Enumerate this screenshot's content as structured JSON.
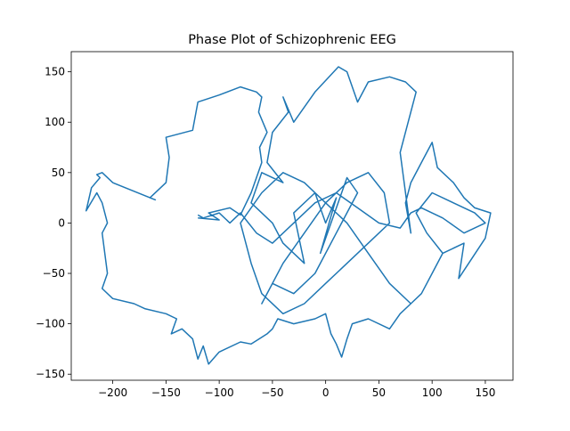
{
  "chart_data": {
    "type": "line",
    "title": "Phase Plot of Schizophrenic EEG",
    "color": "#1f77b4",
    "xlim": [
      -239,
      176
    ],
    "ylim": [
      -156,
      170
    ],
    "xticks": [
      {
        "value": -200,
        "label": "−200"
      },
      {
        "value": -150,
        "label": "−150"
      },
      {
        "value": -100,
        "label": "−100"
      },
      {
        "value": -50,
        "label": "−50"
      },
      0,
      50,
      100,
      150
    ],
    "yticks": [
      {
        "value": -150,
        "label": "−150"
      },
      {
        "value": -100,
        "label": "−100"
      },
      {
        "value": -50,
        "label": "−50"
      },
      0,
      50,
      100,
      150
    ],
    "x": [
      -120,
      -100,
      -110,
      -90,
      -80,
      -70,
      -60,
      -62,
      -55,
      -63,
      -60,
      -65,
      -80,
      -100,
      -120,
      -125,
      -150,
      -147,
      -150,
      -165,
      -160,
      -200,
      -210,
      -215,
      -212,
      -220,
      -225,
      -215,
      -210,
      -205,
      -210,
      -205,
      -210,
      -200,
      -180,
      -170,
      -150,
      -140,
      -145,
      -135,
      -125,
      -120,
      -115,
      -110,
      -100,
      -80,
      -70,
      -55,
      -50,
      -45,
      -30,
      -10,
      0,
      5,
      10,
      15,
      20,
      25,
      40,
      60,
      70,
      80,
      90,
      100,
      110,
      130,
      125,
      150,
      155,
      140,
      130,
      120,
      105,
      100,
      90,
      80,
      75,
      80,
      70,
      85,
      75,
      60,
      40,
      30,
      20,
      12,
      -10,
      -20,
      -30,
      -40,
      -35,
      -50,
      -55,
      -40,
      -60,
      -70,
      -50,
      -40,
      -20,
      -30,
      -10,
      0,
      10,
      -5,
      20,
      30,
      10,
      -10,
      -30,
      -50,
      -60,
      -40,
      -20,
      0,
      20,
      40,
      55,
      60,
      40,
      20,
      0,
      -20,
      -40,
      -60,
      -70,
      -80,
      -60,
      -40,
      -20,
      0,
      20,
      40,
      60,
      80,
      90,
      100,
      110,
      95,
      85,
      100,
      120,
      140,
      150,
      130,
      110,
      90,
      80,
      70,
      50,
      30,
      10,
      -10,
      -30,
      -50,
      -65,
      -80,
      -90,
      -100,
      -115,
      -120
    ],
    "y": [
      5,
      3,
      10,
      15,
      8,
      30,
      60,
      75,
      90,
      110,
      125,
      130,
      135,
      127,
      120,
      92,
      85,
      65,
      40,
      25,
      23,
      40,
      50,
      48,
      45,
      35,
      12,
      30,
      20,
      0,
      -10,
      -50,
      -65,
      -75,
      -80,
      -85,
      -90,
      -95,
      -110,
      -105,
      -115,
      -135,
      -122,
      -140,
      -128,
      -118,
      -120,
      -110,
      -105,
      -95,
      -100,
      -95,
      -90,
      -110,
      -120,
      -133,
      -115,
      -100,
      -95,
      -105,
      -90,
      -80,
      -70,
      -50,
      -30,
      -20,
      -55,
      -15,
      10,
      15,
      25,
      40,
      55,
      80,
      60,
      40,
      20,
      -10,
      70,
      130,
      140,
      145,
      140,
      120,
      150,
      155,
      130,
      115,
      100,
      125,
      110,
      90,
      60,
      40,
      50,
      20,
      0,
      -20,
      -40,
      10,
      30,
      0,
      25,
      -30,
      45,
      30,
      -10,
      -50,
      -70,
      -60,
      -80,
      -40,
      -10,
      20,
      40,
      50,
      30,
      0,
      -20,
      -40,
      -60,
      -80,
      -90,
      -70,
      -40,
      0,
      30,
      50,
      40,
      20,
      0,
      -30,
      -60,
      -80,
      -70,
      -50,
      -30,
      -10,
      10,
      30,
      20,
      10,
      0,
      -10,
      5,
      15,
      10,
      -5,
      0,
      15,
      30,
      20,
      0,
      -20,
      -10,
      10,
      0,
      10,
      5,
      8
    ]
  }
}
